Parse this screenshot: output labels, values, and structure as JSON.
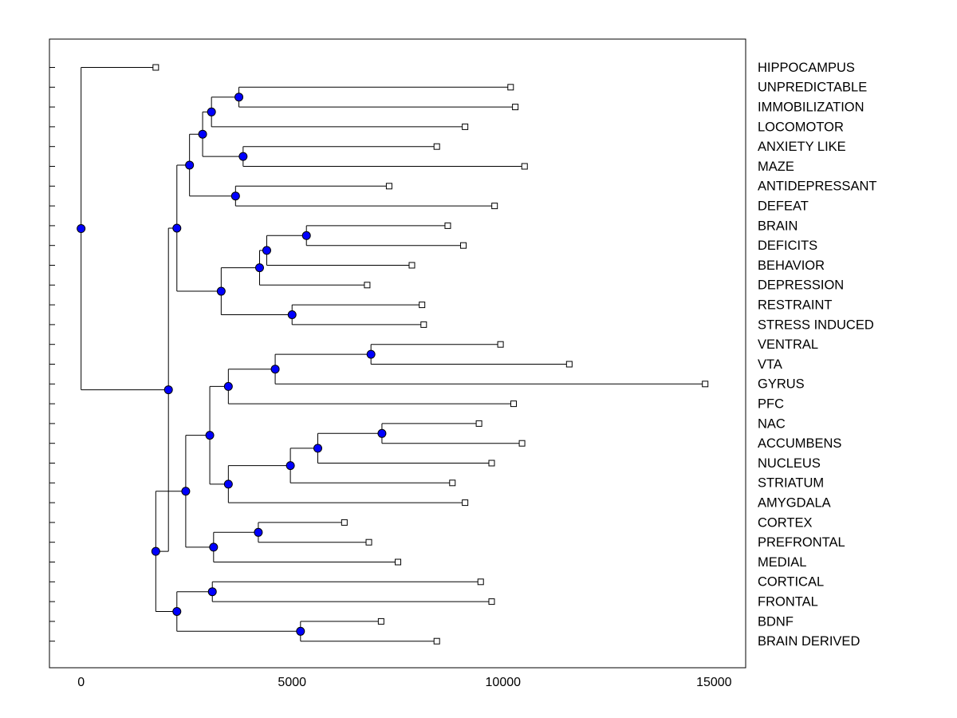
{
  "chart_data": {
    "type": "dendrogram",
    "orientation": "horizontal",
    "title": "",
    "xlabel": "",
    "ylabel": "",
    "xlim": [
      -750,
      15750
    ],
    "xticks": [
      0,
      5000,
      10000,
      15000
    ],
    "xtick_labels": [
      "0",
      "5000",
      "10000",
      "15000"
    ],
    "node_color": "#0000ff",
    "leaves": [
      {
        "label": "HIPPOCAMPUS",
        "value": 1770
      },
      {
        "label": "UNPREDICTABLE",
        "value": 10180
      },
      {
        "label": "IMMOBILIZATION",
        "value": 10290
      },
      {
        "label": "LOCOMOTOR",
        "value": 9100
      },
      {
        "label": "ANXIETY LIKE",
        "value": 8430
      },
      {
        "label": "MAZE",
        "value": 10510
      },
      {
        "label": "ANTIDEPRESSANT",
        "value": 7300
      },
      {
        "label": "DEFEAT",
        "value": 9800
      },
      {
        "label": "BRAIN",
        "value": 8690
      },
      {
        "label": "DEFICITS",
        "value": 9060
      },
      {
        "label": "BEHAVIOR",
        "value": 7840
      },
      {
        "label": "DEPRESSION",
        "value": 6780
      },
      {
        "label": "RESTRAINT",
        "value": 8080
      },
      {
        "label": "STRESS INDUCED",
        "value": 8120
      },
      {
        "label": "VENTRAL",
        "value": 9940
      },
      {
        "label": "VTA",
        "value": 11570
      },
      {
        "label": "GYRUS",
        "value": 14790
      },
      {
        "label": "PFC",
        "value": 10250
      },
      {
        "label": "NAC",
        "value": 9430
      },
      {
        "label": "ACCUMBENS",
        "value": 10450
      },
      {
        "label": "NUCLEUS",
        "value": 9730
      },
      {
        "label": "STRIATUM",
        "value": 8800
      },
      {
        "label": "AMYGDALA",
        "value": 9100
      },
      {
        "label": "CORTEX",
        "value": 6240
      },
      {
        "label": "PREFRONTAL",
        "value": 6820
      },
      {
        "label": "MEDIAL",
        "value": 7510
      },
      {
        "label": "CORTICAL",
        "value": 9470
      },
      {
        "label": "FRONTAL",
        "value": 9730
      },
      {
        "label": "BDNF",
        "value": 7110
      },
      {
        "label": "BRAIN DERIVED",
        "value": 8430
      }
    ],
    "nodes": [
      {
        "id": "n1",
        "value": 3740,
        "children": [
          "L1",
          "L2"
        ]
      },
      {
        "id": "n2",
        "value": 3090,
        "children": [
          "n1",
          "L3"
        ]
      },
      {
        "id": "n3",
        "value": 3840,
        "children": [
          "L4",
          "L5"
        ]
      },
      {
        "id": "n4",
        "value": 2880,
        "children": [
          "n2",
          "n3"
        ]
      },
      {
        "id": "n5",
        "value": 3660,
        "children": [
          "L6",
          "L7"
        ]
      },
      {
        "id": "n6",
        "value": 2570,
        "children": [
          "n4",
          "n5"
        ]
      },
      {
        "id": "n7",
        "value": 5340,
        "children": [
          "L8",
          "L9"
        ]
      },
      {
        "id": "n8",
        "value": 4400,
        "children": [
          "n7",
          "L10"
        ]
      },
      {
        "id": "n9",
        "value": 4230,
        "children": [
          "n8",
          "L11"
        ]
      },
      {
        "id": "n10",
        "value": 5000,
        "children": [
          "L12",
          "L13"
        ]
      },
      {
        "id": "n11",
        "value": 3320,
        "children": [
          "n9",
          "n10"
        ]
      },
      {
        "id": "n12",
        "value": 2270,
        "children": [
          "n6",
          "n11"
        ]
      },
      {
        "id": "n13",
        "value": 6870,
        "children": [
          "L14",
          "L15"
        ]
      },
      {
        "id": "n14",
        "value": 4600,
        "children": [
          "n13",
          "L16"
        ]
      },
      {
        "id": "n15",
        "value": 3490,
        "children": [
          "n14",
          "L17"
        ]
      },
      {
        "id": "n16",
        "value": 7130,
        "children": [
          "L18",
          "L19"
        ]
      },
      {
        "id": "n17",
        "value": 5610,
        "children": [
          "n16",
          "L20"
        ]
      },
      {
        "id": "n18",
        "value": 4960,
        "children": [
          "n17",
          "L21"
        ]
      },
      {
        "id": "n19",
        "value": 3490,
        "children": [
          "n18",
          "L22"
        ]
      },
      {
        "id": "n20",
        "value": 3050,
        "children": [
          "n15",
          "n19"
        ]
      },
      {
        "id": "n21",
        "value": 4200,
        "children": [
          "L23",
          "L24"
        ]
      },
      {
        "id": "n22",
        "value": 3140,
        "children": [
          "n21",
          "L25"
        ]
      },
      {
        "id": "n23",
        "value": 2480,
        "children": [
          "n20",
          "n22"
        ]
      },
      {
        "id": "n24",
        "value": 3110,
        "children": [
          "L26",
          "L27"
        ]
      },
      {
        "id": "n25",
        "value": 5200,
        "children": [
          "L28",
          "L29"
        ]
      },
      {
        "id": "n26",
        "value": 2270,
        "children": [
          "n24",
          "n25"
        ]
      },
      {
        "id": "n27",
        "value": 1770,
        "children": [
          "n23",
          "n26"
        ]
      },
      {
        "id": "n28",
        "value": 2070,
        "children": [
          "n12",
          "n27"
        ]
      },
      {
        "id": "n29",
        "value": 0,
        "children": [
          "L0",
          "n28"
        ]
      }
    ]
  }
}
